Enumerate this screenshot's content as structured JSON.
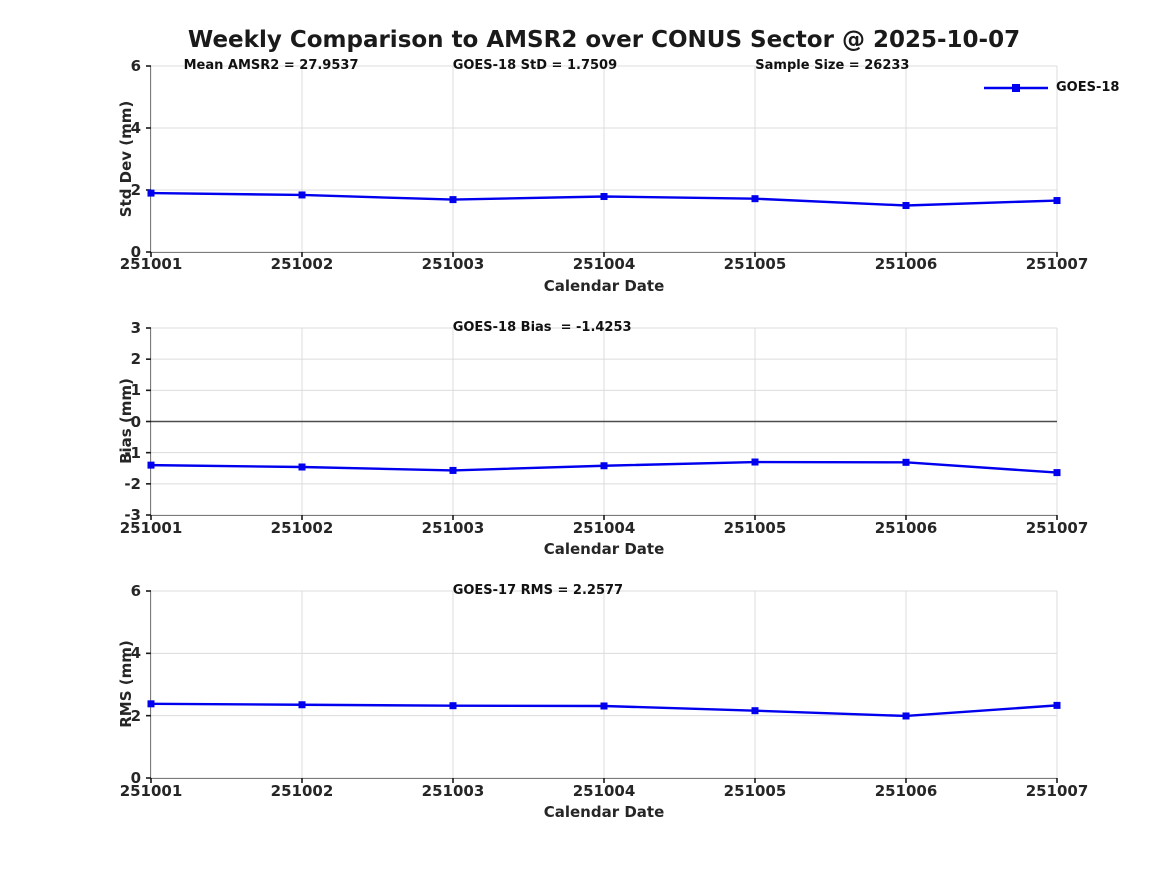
{
  "title": "Weekly Comparison to AMSR2 over CONUS Sector @ 2025-10-07",
  "legend": {
    "label": "GOES-18"
  },
  "colors": {
    "line": "#0000ee",
    "grid": "#dcdcdc",
    "axis": "#1a1a1a",
    "zero_line": "#4d4d4d",
    "text": "#262626"
  },
  "chart_data": [
    {
      "type": "line",
      "ylabel": "Std Dev (mm)",
      "xlabel": "Calendar Date",
      "categories": [
        "251001",
        "251002",
        "251003",
        "251004",
        "251005",
        "251006",
        "251007"
      ],
      "series": [
        {
          "name": "GOES-18",
          "values": [
            1.9,
            1.84,
            1.69,
            1.79,
            1.72,
            1.5,
            1.66
          ]
        }
      ],
      "ylim": [
        0,
        6
      ],
      "yticks": [
        0,
        2,
        4,
        6
      ],
      "grid": true,
      "legend_position": "top-right-outside",
      "annotations": [
        {
          "text": "Mean AMSR2 = 27.9537",
          "x_pct": 3.6
        },
        {
          "text": "GOES-18 StD = 1.7509",
          "x_pct": 33.3
        },
        {
          "text": "Sample Size = 26233",
          "x_pct": 66.7
        }
      ]
    },
    {
      "type": "line",
      "ylabel": "Bias (mm)",
      "xlabel": "Calendar Date",
      "categories": [
        "251001",
        "251002",
        "251003",
        "251004",
        "251005",
        "251006",
        "251007"
      ],
      "series": [
        {
          "name": "GOES-18",
          "values": [
            -1.4,
            -1.46,
            -1.57,
            -1.42,
            -1.3,
            -1.31,
            -1.64
          ]
        }
      ],
      "ylim": [
        -3,
        3
      ],
      "yticks": [
        -3,
        -2,
        -1,
        0,
        1,
        2,
        3
      ],
      "grid": true,
      "zero_line": true,
      "annotations": [
        {
          "text": "GOES-18 Bias  = -1.4253",
          "x_pct": 33.3
        }
      ]
    },
    {
      "type": "line",
      "ylabel": "RMS (mm)",
      "xlabel": "Calendar Date",
      "categories": [
        "251001",
        "251002",
        "251003",
        "251004",
        "251005",
        "251006",
        "251007"
      ],
      "series": [
        {
          "name": "GOES-18",
          "values": [
            2.38,
            2.35,
            2.32,
            2.31,
            2.16,
            1.99,
            2.33
          ]
        }
      ],
      "ylim": [
        0,
        6
      ],
      "yticks": [
        0,
        2,
        4,
        6
      ],
      "grid": true,
      "annotations": [
        {
          "text": "GOES-17 RMS = 2.2577",
          "x_pct": 33.3
        }
      ]
    }
  ]
}
